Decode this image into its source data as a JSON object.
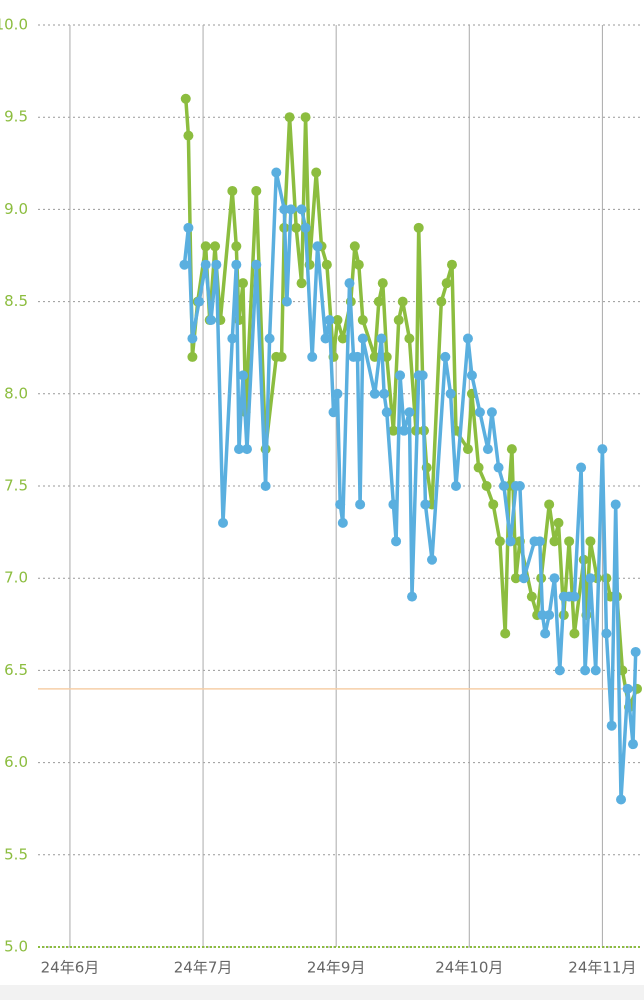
{
  "chart_data": {
    "type": "line",
    "xlim": [
      -0.24,
      4.29
    ],
    "xticks": [
      {
        "value": 0,
        "label": "24年6月"
      },
      {
        "value": 1,
        "label": "24年7月"
      },
      {
        "value": 2,
        "label": "24年9月"
      },
      {
        "value": 3,
        "label": "24年10月"
      },
      {
        "value": 4,
        "label": "24年11月"
      }
    ],
    "ylim": [
      5,
      10
    ],
    "yticks": [
      {
        "value": 5,
        "label": "5.0"
      },
      5.5,
      {
        "value": 6,
        "label": "6.0"
      },
      6.5,
      {
        "value": 7,
        "label": "7.0"
      },
      7.5,
      {
        "value": 8,
        "label": "8.0"
      },
      8.5,
      {
        "value": 9,
        "label": "9.0"
      },
      9.5,
      {
        "value": 10,
        "label": "10.0"
      }
    ],
    "grid": true,
    "tick_label_color": "#8cbd3f",
    "reference_line": {
      "value": 6.4,
      "color": "#f6cfa8"
    },
    "series": [
      {
        "color": "#8cbd3f",
        "x": [
          0.87,
          0.89,
          0.92,
          0.96,
          1.02,
          1.05,
          1.09,
          1.13,
          1.22,
          1.25,
          1.27,
          1.3,
          1.32,
          1.4,
          1.47,
          1.55,
          1.59,
          1.61,
          1.65,
          1.7,
          1.74,
          1.77,
          1.8,
          1.85,
          1.89,
          1.93,
          1.98,
          2.01,
          2.05,
          2.11,
          2.14,
          2.17,
          2.2,
          2.29,
          2.32,
          2.35,
          2.38,
          2.43,
          2.47,
          2.5,
          2.55,
          2.6,
          2.62,
          2.66,
          2.68,
          2.72,
          2.79,
          2.83,
          2.87,
          2.9,
          2.99,
          3.02,
          3.07,
          3.13,
          3.18,
          3.23,
          3.27,
          3.3,
          3.32,
          3.35,
          3.38,
          3.47,
          3.51,
          3.54,
          3.6,
          3.64,
          3.67,
          3.71,
          3.75,
          3.79,
          3.86,
          3.88,
          3.91,
          3.96,
          4.03,
          4.06,
          4.11,
          4.15,
          4.2,
          4.26
        ],
        "values": [
          9.6,
          9.4,
          8.2,
          8.5,
          8.8,
          8.4,
          8.8,
          8.4,
          9.1,
          8.8,
          8.4,
          8.6,
          7.9,
          9.1,
          7.7,
          8.2,
          8.2,
          8.9,
          9.5,
          8.9,
          8.6,
          9.5,
          8.7,
          9.2,
          8.8,
          8.7,
          8.2,
          8.4,
          8.3,
          8.5,
          8.8,
          8.7,
          8.4,
          8.2,
          8.5,
          8.6,
          8.2,
          7.8,
          8.4,
          8.5,
          8.3,
          7.8,
          8.9,
          7.8,
          7.6,
          7.4,
          8.5,
          8.6,
          8.7,
          7.8,
          7.7,
          8.0,
          7.6,
          7.5,
          7.4,
          7.2,
          6.7,
          7.5,
          7.7,
          7.0,
          7.2,
          6.9,
          6.8,
          7.0,
          7.4,
          7.2,
          7.3,
          6.8,
          7.2,
          6.7,
          7.1,
          6.8,
          7.2,
          7.0,
          7.0,
          6.9,
          6.9,
          6.5,
          6.3,
          6.4
        ]
      },
      {
        "color": "#5aafdf",
        "x": [
          0.86,
          0.89,
          0.92,
          0.97,
          1.02,
          1.06,
          1.1,
          1.15,
          1.22,
          1.25,
          1.27,
          1.3,
          1.33,
          1.4,
          1.47,
          1.5,
          1.55,
          1.61,
          1.63,
          1.66,
          1.74,
          1.77,
          1.82,
          1.86,
          1.92,
          1.95,
          1.98,
          2.01,
          2.03,
          2.05,
          2.1,
          2.13,
          2.16,
          2.18,
          2.2,
          2.29,
          2.34,
          2.36,
          2.38,
          2.43,
          2.45,
          2.48,
          2.51,
          2.55,
          2.57,
          2.62,
          2.65,
          2.67,
          2.72,
          2.82,
          2.86,
          2.9,
          2.99,
          3.02,
          3.08,
          3.14,
          3.17,
          3.22,
          3.26,
          3.31,
          3.35,
          3.38,
          3.41,
          3.49,
          3.53,
          3.55,
          3.57,
          3.6,
          3.64,
          3.68,
          3.71,
          3.75,
          3.79,
          3.84,
          3.87,
          3.91,
          3.95,
          4.0,
          4.03,
          4.07,
          4.1,
          4.14,
          4.19,
          4.23,
          4.25
        ],
        "values": [
          8.7,
          8.9,
          8.3,
          8.5,
          8.7,
          8.4,
          8.7,
          7.3,
          8.3,
          8.7,
          7.7,
          8.1,
          7.7,
          8.7,
          7.5,
          8.3,
          9.2,
          9.0,
          8.5,
          9.0,
          9.0,
          8.9,
          8.2,
          8.8,
          8.3,
          8.4,
          7.9,
          8.0,
          7.4,
          7.3,
          8.6,
          8.2,
          8.2,
          7.4,
          8.3,
          8.0,
          8.3,
          8.0,
          7.9,
          7.4,
          7.2,
          8.1,
          7.8,
          7.9,
          6.9,
          8.1,
          8.1,
          7.4,
          7.1,
          8.2,
          8.0,
          7.5,
          8.3,
          8.1,
          7.9,
          7.7,
          7.9,
          7.6,
          7.5,
          7.2,
          7.5,
          7.5,
          7.0,
          7.2,
          7.2,
          6.8,
          6.7,
          6.8,
          7.0,
          6.5,
          6.9,
          6.9,
          6.9,
          7.6,
          6.5,
          7.0,
          6.5,
          7.7,
          6.7,
          6.2,
          7.4,
          5.8,
          6.4,
          6.1,
          6.6
        ]
      }
    ]
  }
}
